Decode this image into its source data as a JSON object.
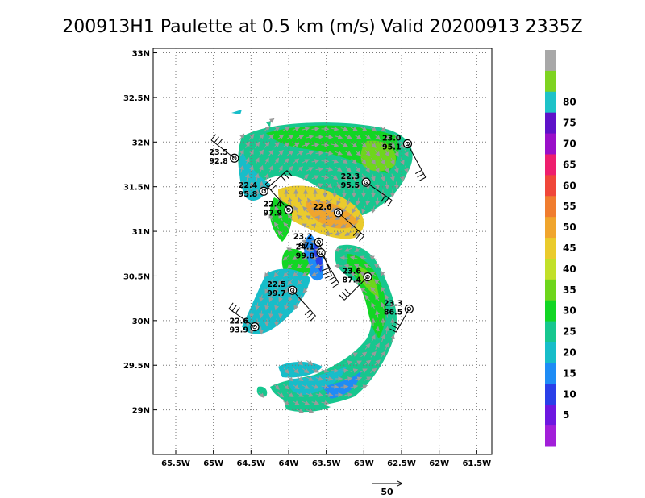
{
  "title": "200913H1 Paulette at 0.5 km (m/s) Valid 20200913 2335Z",
  "map": {
    "lon_ticks": [
      {
        "lon": -65.5,
        "label": "65.5W"
      },
      {
        "lon": -65.0,
        "label": "65W"
      },
      {
        "lon": -64.5,
        "label": "64.5W"
      },
      {
        "lon": -64.0,
        "label": "64W"
      },
      {
        "lon": -63.5,
        "label": "63.5W"
      },
      {
        "lon": -63.0,
        "label": "63W"
      },
      {
        "lon": -62.5,
        "label": "62.5W"
      },
      {
        "lon": -62.0,
        "label": "62W"
      },
      {
        "lon": -61.5,
        "label": "61.5W"
      }
    ],
    "lat_ticks": [
      {
        "lat": 33.0,
        "label": "33N"
      },
      {
        "lat": 32.5,
        "label": "32.5N"
      },
      {
        "lat": 32.0,
        "label": "32N"
      },
      {
        "lat": 31.5,
        "label": "31.5N"
      },
      {
        "lat": 31.0,
        "label": "31N"
      },
      {
        "lat": 30.5,
        "label": "30.5N"
      },
      {
        "lat": 30.0,
        "label": "30N"
      },
      {
        "lat": 29.5,
        "label": "29.5N"
      },
      {
        "lat": 29.0,
        "label": "29N"
      }
    ],
    "lon_range": [
      -65.8,
      -61.3
    ],
    "lat_range": [
      28.5,
      33.05
    ],
    "grid": "dotted"
  },
  "colorbar": {
    "colors": [
      "#a21fd9",
      "#6e17e0",
      "#2a3fe8",
      "#1e8cf5",
      "#17bdc9",
      "#17c78f",
      "#12d624",
      "#6ed61c",
      "#c2e02a",
      "#eacb2c",
      "#f0a52d",
      "#f07d2f",
      "#f0473a",
      "#ee1f6e",
      "#9a10c9",
      "#5e12c9",
      "#1ec2c8",
      "#7ed321",
      "#a8a8a8"
    ],
    "labels": [
      "5",
      "10",
      "15",
      "20",
      "25",
      "30",
      "35",
      "40",
      "45",
      "50",
      "55",
      "60",
      "65",
      "70",
      "75",
      "80"
    ]
  },
  "observations": [
    {
      "lon": -64.72,
      "lat": 31.82,
      "line1": "23.5",
      "line2": "92.8"
    },
    {
      "lon": -64.33,
      "lat": 31.45,
      "line1": "22.4",
      "line2": "95.8"
    },
    {
      "lon": -64.0,
      "lat": 31.24,
      "line1": "22.4",
      "line2": "97.9"
    },
    {
      "lon": -63.34,
      "lat": 31.21,
      "line1": "22.6",
      "line2": ""
    },
    {
      "lon": -63.6,
      "lat": 30.88,
      "line1": "23.2",
      "line2": "97."
    },
    {
      "lon": -63.57,
      "lat": 30.76,
      "line1": "24.1",
      "line2": "99.8"
    },
    {
      "lon": -62.97,
      "lat": 31.55,
      "line1": "22.3",
      "line2": "95.5"
    },
    {
      "lon": -62.42,
      "lat": 31.98,
      "line1": "23.0",
      "line2": "95.1"
    },
    {
      "lon": -62.95,
      "lat": 30.49,
      "line1": "23.6",
      "line2": "87.4"
    },
    {
      "lon": -63.95,
      "lat": 30.34,
      "line1": "22.5",
      "line2": "99.7"
    },
    {
      "lon": -62.4,
      "lat": 30.13,
      "line1": "23.3",
      "line2": "86.5"
    },
    {
      "lon": -64.45,
      "lat": 29.93,
      "line1": "22.6",
      "line2": "93.9"
    }
  ],
  "reference_vector": {
    "label": "50"
  }
}
